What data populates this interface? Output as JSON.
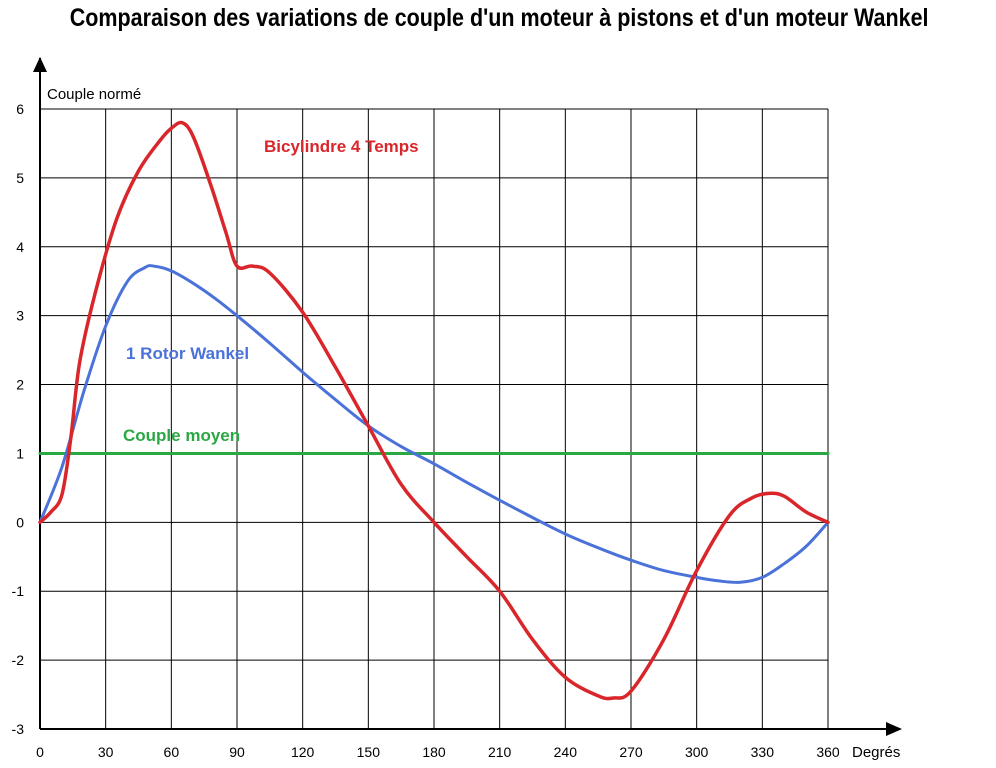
{
  "chart_data": {
    "type": "line",
    "title": "Comparaison des variations de couple d'un moteur à pistons et d'un moteur Wankel",
    "xlabel": "Degrés",
    "ylabel": "Couple normé",
    "xlim": [
      0,
      360
    ],
    "ylim": [
      -3,
      6
    ],
    "xticks": [
      0,
      30,
      60,
      90,
      120,
      150,
      180,
      210,
      240,
      270,
      300,
      330,
      360
    ],
    "yticks": [
      6,
      5,
      4,
      3,
      2,
      1,
      0,
      -1,
      -2,
      -3
    ],
    "grid": true,
    "series": [
      {
        "name": "Bicylindre 4 Temps",
        "color": "#d9262b",
        "x": [
          0,
          5,
          10,
          14,
          18,
          25,
          35,
          45,
          55,
          60,
          65,
          70,
          78,
          85,
          90,
          97,
          105,
          120,
          135,
          150,
          165,
          180,
          195,
          210,
          225,
          240,
          255,
          262,
          270,
          285,
          300,
          315,
          325,
          333,
          340,
          350,
          360
        ],
        "y": [
          0,
          0.15,
          0.4,
          1.2,
          2.3,
          3.3,
          4.4,
          5.1,
          5.55,
          5.72,
          5.8,
          5.6,
          4.9,
          4.2,
          3.72,
          3.72,
          3.62,
          3.05,
          2.25,
          1.4,
          0.55,
          0,
          -0.5,
          -1.0,
          -1.7,
          -2.25,
          -2.52,
          -2.55,
          -2.45,
          -1.7,
          -0.7,
          0.1,
          0.35,
          0.42,
          0.38,
          0.15,
          0
        ]
      },
      {
        "name": "1 Rotor Wankel",
        "color": "#4a72d8",
        "x": [
          0,
          10,
          20,
          30,
          40,
          48,
          52,
          60,
          70,
          80,
          90,
          105,
          120,
          135,
          150,
          165,
          180,
          195,
          210,
          225,
          240,
          255,
          270,
          285,
          300,
          310,
          320,
          330,
          340,
          350,
          360
        ],
        "y": [
          0,
          0.8,
          1.9,
          2.85,
          3.5,
          3.7,
          3.72,
          3.65,
          3.47,
          3.25,
          3.0,
          2.6,
          2.18,
          1.78,
          1.4,
          1.1,
          0.85,
          0.58,
          0.32,
          0.07,
          -0.17,
          -0.37,
          -0.55,
          -0.7,
          -0.8,
          -0.85,
          -0.87,
          -0.8,
          -0.6,
          -0.35,
          0
        ]
      },
      {
        "name": "Couple moyen",
        "color": "#2aa843",
        "x": [
          0,
          360
        ],
        "y": [
          1,
          1
        ]
      }
    ]
  }
}
